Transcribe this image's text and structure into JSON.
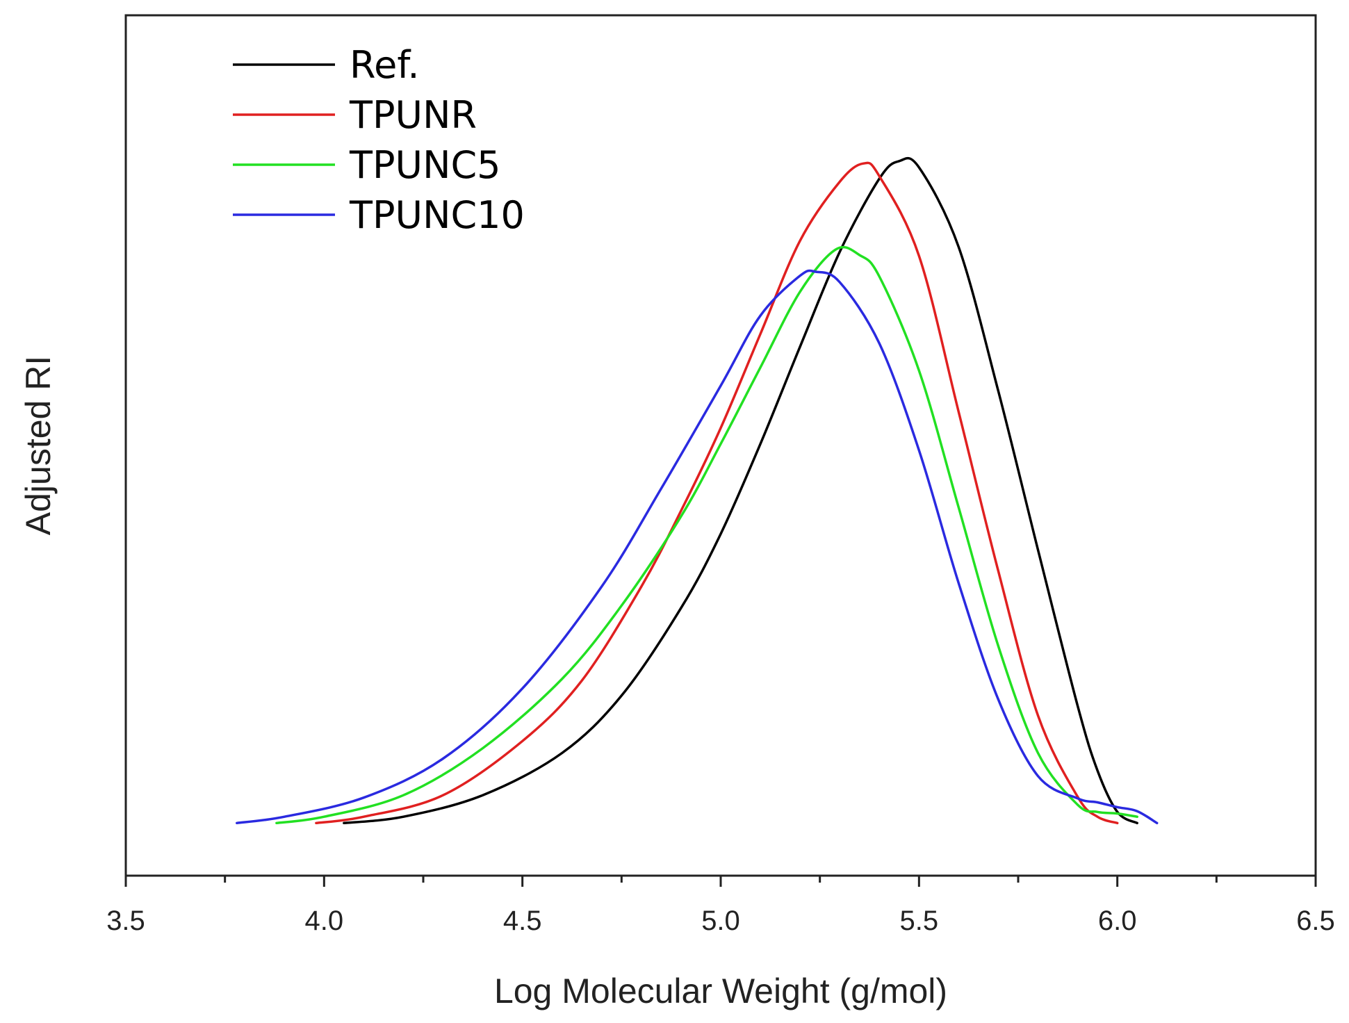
{
  "chart_data": {
    "type": "line",
    "title": "",
    "xlabel": "Log Molecular Weight (g/mol)",
    "ylabel": "Adjusted RI",
    "xlim": [
      3.5,
      6.5
    ],
    "ylim": [
      0,
      1.08
    ],
    "x_ticks": [
      "3.5",
      "4.0",
      "4.5",
      "5.0",
      "5.5",
      "6.0",
      "6.5"
    ],
    "x_minor_step": 0.25,
    "y_ticks_shown": false,
    "grid": false,
    "legend_position": "top-left",
    "series": [
      {
        "name": "Ref.",
        "color": "#000000",
        "x": [
          4.05,
          4.2,
          4.4,
          4.6,
          4.75,
          4.9,
          5.0,
          5.1,
          5.2,
          5.3,
          5.4,
          5.45,
          5.5,
          5.6,
          5.7,
          5.8,
          5.9,
          5.95,
          6.0,
          6.05
        ],
        "y": [
          0.066,
          0.074,
          0.101,
          0.154,
          0.226,
          0.336,
          0.429,
          0.542,
          0.664,
          0.783,
          0.875,
          0.897,
          0.889,
          0.789,
          0.608,
          0.409,
          0.213,
          0.132,
          0.08,
          0.066
        ]
      },
      {
        "name": "TPUNR",
        "color": "#e02020",
        "x": [
          3.98,
          4.1,
          4.3,
          4.5,
          4.65,
          4.8,
          4.9,
          5.0,
          5.1,
          5.2,
          5.3,
          5.36,
          5.4,
          5.5,
          5.6,
          5.7,
          5.8,
          5.9,
          5.95,
          6.0
        ],
        "y": [
          0.066,
          0.074,
          0.101,
          0.169,
          0.245,
          0.363,
          0.458,
          0.562,
          0.68,
          0.797,
          0.871,
          0.894,
          0.878,
          0.778,
          0.582,
          0.382,
          0.201,
          0.099,
          0.074,
          0.066
        ]
      },
      {
        "name": "TPUNC5",
        "color": "#22e022",
        "x": [
          3.88,
          4.0,
          4.2,
          4.4,
          4.6,
          4.75,
          4.9,
          5.0,
          5.1,
          5.2,
          5.29,
          5.35,
          5.4,
          5.5,
          5.6,
          5.7,
          5.8,
          5.9,
          5.95,
          6.0,
          6.05
        ],
        "y": [
          0.066,
          0.074,
          0.101,
          0.16,
          0.247,
          0.339,
          0.451,
          0.542,
          0.638,
          0.733,
          0.786,
          0.779,
          0.752,
          0.634,
          0.462,
          0.288,
          0.154,
          0.089,
          0.08,
          0.078,
          0.074
        ]
      },
      {
        "name": "TPUNC10",
        "color": "#2a2ae0",
        "x": [
          3.78,
          3.9,
          4.1,
          4.3,
          4.5,
          4.7,
          4.85,
          5.0,
          5.1,
          5.2,
          5.24,
          5.3,
          5.4,
          5.5,
          5.6,
          5.7,
          5.8,
          5.9,
          5.95,
          6.0,
          6.05,
          6.1
        ],
        "y": [
          0.066,
          0.074,
          0.098,
          0.147,
          0.235,
          0.363,
          0.486,
          0.615,
          0.703,
          0.753,
          0.758,
          0.745,
          0.668,
          0.534,
          0.367,
          0.221,
          0.125,
          0.097,
          0.092,
          0.086,
          0.081,
          0.066
        ]
      }
    ]
  }
}
